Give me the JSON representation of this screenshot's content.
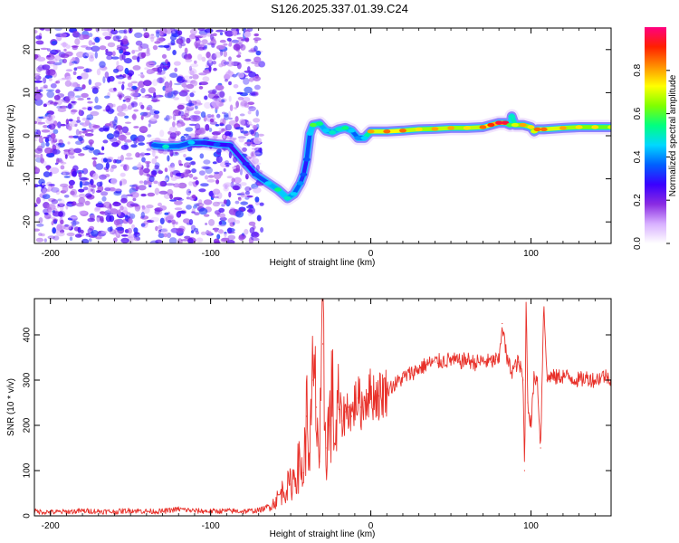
{
  "title": "S126.2025.337.01.39.C24",
  "chart_data": [
    {
      "type": "heatmap",
      "xlabel": "Height of straight line (km)",
      "ylabel": "Frequency (Hz)",
      "xlim": [
        -210,
        150
      ],
      "ylim": [
        -25,
        25
      ],
      "x_ticks": [
        -200,
        -100,
        0,
        100
      ],
      "y_ticks": [
        -20,
        -10,
        0,
        10,
        20
      ],
      "colorbar": {
        "label": "Normalized spectral amplitude",
        "range": [
          0,
          1
        ],
        "ticks": [
          0.0,
          0.2,
          0.4,
          0.6,
          0.8
        ],
        "tick_labels": [
          "0.0",
          "0.2",
          "0.4",
          "0.6",
          "0.8"
        ],
        "colormap": [
          "#ffffff",
          "#d8b0ff",
          "#8a2be2",
          "#3a00ff",
          "#0060ff",
          "#00d8ff",
          "#00ff80",
          "#80ff00",
          "#ffff00",
          "#ff9000",
          "#ff2000",
          "#ff0080"
        ]
      },
      "noise_region": {
        "x": [
          -210,
          -68
        ],
        "y": [
          -25,
          25
        ],
        "typical_amplitude": 0.2
      },
      "ridge": {
        "x": [
          -135,
          -128,
          -120,
          -112,
          -104,
          -96,
          -88,
          -78,
          -72,
          -64,
          -58,
          -52,
          -48,
          -44,
          -42,
          -40,
          -38,
          -36,
          -32,
          -28,
          -24,
          -20,
          -16,
          -12,
          -8,
          -4,
          0,
          10,
          20,
          30,
          40,
          50,
          60,
          70,
          75,
          80,
          84,
          87,
          88,
          90,
          95,
          100,
          102,
          104,
          108,
          120,
          130,
          140,
          150
        ],
        "y": [
          -2.2,
          -2.5,
          -2.4,
          -1.6,
          -1.6,
          -2.0,
          -2.2,
          -6.5,
          -9.0,
          -11.0,
          -12.5,
          -14.5,
          -13.5,
          -11.0,
          -9.0,
          -5.5,
          0.5,
          2.5,
          2.8,
          1.2,
          0.8,
          1.5,
          1.8,
          1.2,
          -0.5,
          -0.5,
          1.0,
          1.0,
          1.2,
          1.5,
          1.6,
          1.8,
          1.8,
          2.0,
          2.5,
          3.0,
          3.0,
          2.5,
          4.5,
          2.5,
          2.5,
          2.0,
          1.0,
          1.5,
          1.5,
          1.8,
          2.0,
          2.0,
          2.0
        ],
        "amplitude": [
          0.35,
          0.5,
          0.35,
          0.45,
          0.3,
          0.35,
          0.3,
          0.3,
          0.35,
          0.45,
          0.55,
          0.5,
          0.45,
          0.4,
          0.35,
          0.35,
          0.45,
          0.6,
          0.55,
          0.45,
          0.5,
          0.5,
          0.55,
          0.45,
          0.4,
          0.45,
          0.8,
          0.85,
          0.85,
          0.75,
          0.8,
          0.8,
          0.75,
          0.85,
          0.9,
          0.95,
          0.95,
          0.6,
          0.5,
          0.7,
          0.8,
          0.75,
          0.7,
          0.85,
          0.85,
          0.8,
          0.75,
          0.75,
          0.7
        ]
      }
    },
    {
      "type": "line",
      "xlabel": "Height of straight line (km)",
      "ylabel": "SNR (10 * v/v)",
      "xlim": [
        -210,
        150
      ],
      "ylim": [
        0,
        480
      ],
      "x_ticks": [
        -200,
        -100,
        0,
        100
      ],
      "y_ticks": [
        0,
        100,
        200,
        300,
        400
      ],
      "series": [
        {
          "color": "#e8312a",
          "x": [
            -210,
            -200,
            -190,
            -180,
            -170,
            -160,
            -150,
            -140,
            -130,
            -120,
            -115,
            -110,
            -100,
            -90,
            -80,
            -70,
            -65,
            -60,
            -55,
            -50,
            -45,
            -42,
            -40,
            -38,
            -36,
            -34,
            -32,
            -30,
            -28,
            -26,
            -24,
            -22,
            -20,
            -18,
            -16,
            -14,
            -12,
            -10,
            -8,
            -6,
            -4,
            -2,
            0,
            5,
            10,
            15,
            20,
            25,
            30,
            35,
            40,
            45,
            50,
            55,
            60,
            65,
            70,
            75,
            78,
            80,
            82,
            85,
            88,
            90,
            92,
            94,
            95,
            96,
            97,
            98,
            100,
            102,
            104,
            106,
            108,
            110,
            112,
            115,
            120,
            125,
            130,
            135,
            140,
            145,
            150
          ],
          "y": [
            10,
            8,
            9,
            11,
            10,
            9,
            12,
            10,
            10,
            15,
            13,
            11,
            10,
            11,
            10,
            12,
            18,
            30,
            55,
            70,
            110,
            95,
            220,
            140,
            300,
            240,
            120,
            380,
            150,
            200,
            260,
            160,
            240,
            210,
            230,
            240,
            220,
            250,
            260,
            240,
            255,
            270,
            270,
            265,
            280,
            290,
            305,
            315,
            325,
            335,
            340,
            342,
            345,
            340,
            345,
            338,
            342,
            340,
            345,
            340,
            425,
            345,
            320,
            330,
            340,
            320,
            300,
            100,
            480,
            250,
            200,
            310,
            300,
            150,
            480,
            300,
            310,
            305,
            310,
            305,
            300,
            305,
            300,
            310,
            305
          ]
        }
      ]
    }
  ]
}
